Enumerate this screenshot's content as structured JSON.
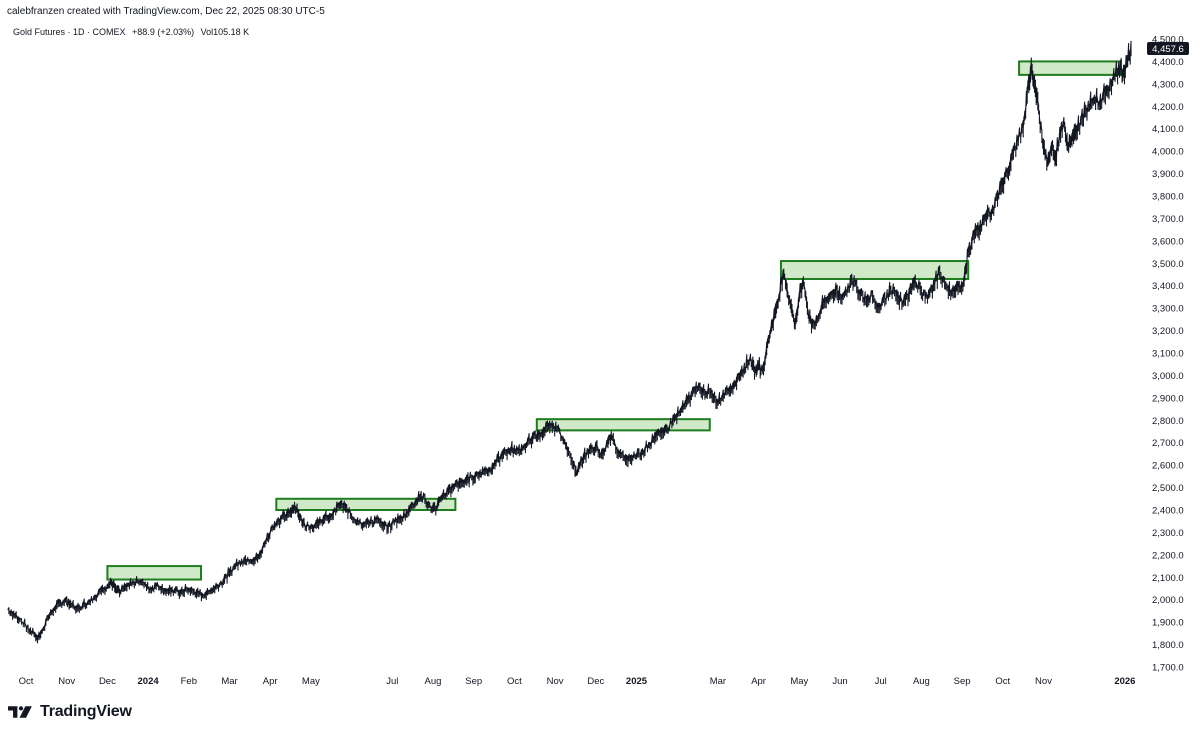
{
  "header": {
    "caption": "calebfranzen created with TradingView.com, Dec 22, 2025 08:30 UTC-5"
  },
  "symbol": {
    "name": "Gold Futures · 1D · COMEX",
    "change": "+88.9 (+2.03%)",
    "volume": "Vol105.18 K"
  },
  "footer": {
    "brand": "TradingView"
  },
  "colors": {
    "line": "#131722",
    "zone_fill": "#cfe9c9",
    "zone_stroke": "#1e7d1e",
    "last_price_bg": "#131722"
  },
  "chart_data": {
    "type": "line",
    "title": "Gold Futures · 1D · COMEX",
    "ylim": [
      1700,
      4500
    ],
    "yticks": [
      "4,500.0",
      "4,400.0",
      "4,300.0",
      "4,200.0",
      "4,100.0",
      "4,000.0",
      "3,900.0",
      "3,800.0",
      "3,700.0",
      "3,600.0",
      "3,500.0",
      "3,400.0",
      "3,300.0",
      "3,200.0",
      "3,100.0",
      "3,000.0",
      "2,900.0",
      "2,800.0",
      "2,700.0",
      "2,600.0",
      "2,500.0",
      "2,400.0",
      "2,300.0",
      "2,200.0",
      "2,100.0",
      "2,000.0",
      "1,900.0",
      "1,800.0",
      "1,700.0"
    ],
    "xticks": [
      {
        "label": "Oct",
        "t": 0.0,
        "bold": false
      },
      {
        "label": "Nov",
        "t": 1.0,
        "bold": false
      },
      {
        "label": "Dec",
        "t": 2.0,
        "bold": false
      },
      {
        "label": "2024",
        "t": 3.0,
        "bold": true
      },
      {
        "label": "Feb",
        "t": 4.0,
        "bold": false
      },
      {
        "label": "Mar",
        "t": 5.0,
        "bold": false
      },
      {
        "label": "Apr",
        "t": 6.0,
        "bold": false
      },
      {
        "label": "May",
        "t": 7.0,
        "bold": false
      },
      {
        "label": "Jul",
        "t": 9.0,
        "bold": false
      },
      {
        "label": "Aug",
        "t": 10.0,
        "bold": false
      },
      {
        "label": "Sep",
        "t": 11.0,
        "bold": false
      },
      {
        "label": "Oct",
        "t": 12.0,
        "bold": false
      },
      {
        "label": "Nov",
        "t": 13.0,
        "bold": false
      },
      {
        "label": "Dec",
        "t": 14.0,
        "bold": false
      },
      {
        "label": "2025",
        "t": 15.0,
        "bold": true
      },
      {
        "label": "Mar",
        "t": 17.0,
        "bold": false
      },
      {
        "label": "Apr",
        "t": 18.0,
        "bold": false
      },
      {
        "label": "May",
        "t": 19.0,
        "bold": false
      },
      {
        "label": "Jun",
        "t": 20.0,
        "bold": false
      },
      {
        "label": "Jul",
        "t": 21.0,
        "bold": false
      },
      {
        "label": "Aug",
        "t": 22.0,
        "bold": false
      },
      {
        "label": "Sep",
        "t": 23.0,
        "bold": false
      },
      {
        "label": "Oct",
        "t": 24.0,
        "bold": false
      },
      {
        "label": "Nov",
        "t": 25.0,
        "bold": false
      },
      {
        "label": "2026",
        "t": 27.0,
        "bold": true
      }
    ],
    "series": [
      {
        "name": "Gold Futures",
        "points": [
          [
            -0.45,
            1955
          ],
          [
            -0.3,
            1935
          ],
          [
            -0.15,
            1910
          ],
          [
            0.05,
            1870
          ],
          [
            0.2,
            1845
          ],
          [
            0.3,
            1830
          ],
          [
            0.4,
            1860
          ],
          [
            0.55,
            1920
          ],
          [
            0.7,
            1960
          ],
          [
            0.85,
            1985
          ],
          [
            1.0,
            1995
          ],
          [
            1.1,
            1980
          ],
          [
            1.25,
            1960
          ],
          [
            1.4,
            1975
          ],
          [
            1.55,
            1990
          ],
          [
            1.7,
            2010
          ],
          [
            1.85,
            2040
          ],
          [
            2.0,
            2060
          ],
          [
            2.1,
            2075
          ],
          [
            2.2,
            2050
          ],
          [
            2.3,
            2030
          ],
          [
            2.45,
            2055
          ],
          [
            2.6,
            2070
          ],
          [
            2.75,
            2080
          ],
          [
            2.9,
            2065
          ],
          [
            3.05,
            2045
          ],
          [
            3.2,
            2060
          ],
          [
            3.35,
            2050
          ],
          [
            3.5,
            2035
          ],
          [
            3.65,
            2040
          ],
          [
            3.8,
            2030
          ],
          [
            3.95,
            2045
          ],
          [
            4.1,
            2035
          ],
          [
            4.25,
            2025
          ],
          [
            4.4,
            2020
          ],
          [
            4.55,
            2040
          ],
          [
            4.7,
            2060
          ],
          [
            4.85,
            2080
          ],
          [
            5.0,
            2120
          ],
          [
            5.15,
            2150
          ],
          [
            5.3,
            2170
          ],
          [
            5.45,
            2180
          ],
          [
            5.6,
            2170
          ],
          [
            5.75,
            2200
          ],
          [
            5.9,
            2260
          ],
          [
            6.05,
            2320
          ],
          [
            6.2,
            2350
          ],
          [
            6.35,
            2370
          ],
          [
            6.5,
            2390
          ],
          [
            6.6,
            2420
          ],
          [
            6.7,
            2380
          ],
          [
            6.8,
            2340
          ],
          [
            6.95,
            2320
          ],
          [
            7.1,
            2330
          ],
          [
            7.25,
            2350
          ],
          [
            7.4,
            2365
          ],
          [
            7.55,
            2380
          ],
          [
            7.7,
            2420
          ],
          [
            7.85,
            2410
          ],
          [
            8.0,
            2370
          ],
          [
            8.15,
            2350
          ],
          [
            8.3,
            2335
          ],
          [
            8.45,
            2340
          ],
          [
            8.6,
            2355
          ],
          [
            8.75,
            2330
          ],
          [
            8.9,
            2320
          ],
          [
            9.05,
            2345
          ],
          [
            9.2,
            2360
          ],
          [
            9.35,
            2385
          ],
          [
            9.5,
            2420
          ],
          [
            9.65,
            2460
          ],
          [
            9.8,
            2450
          ],
          [
            9.95,
            2400
          ],
          [
            10.1,
            2410
          ],
          [
            10.2,
            2450
          ],
          [
            10.35,
            2480
          ],
          [
            10.5,
            2500
          ],
          [
            10.65,
            2520
          ],
          [
            10.8,
            2530
          ],
          [
            10.95,
            2545
          ],
          [
            11.1,
            2555
          ],
          [
            11.25,
            2570
          ],
          [
            11.4,
            2580
          ],
          [
            11.55,
            2610
          ],
          [
            11.7,
            2640
          ],
          [
            11.85,
            2665
          ],
          [
            12.0,
            2670
          ],
          [
            12.15,
            2660
          ],
          [
            12.3,
            2690
          ],
          [
            12.45,
            2720
          ],
          [
            12.6,
            2735
          ],
          [
            12.75,
            2750
          ],
          [
            12.9,
            2775
          ],
          [
            13.05,
            2760
          ],
          [
            13.2,
            2710
          ],
          [
            13.3,
            2660
          ],
          [
            13.45,
            2600
          ],
          [
            13.55,
            2570
          ],
          [
            13.7,
            2630
          ],
          [
            13.85,
            2670
          ],
          [
            14.0,
            2680
          ],
          [
            14.15,
            2650
          ],
          [
            14.3,
            2700
          ],
          [
            14.4,
            2720
          ],
          [
            14.55,
            2650
          ],
          [
            14.7,
            2630
          ],
          [
            14.85,
            2625
          ],
          [
            15.0,
            2640
          ],
          [
            15.15,
            2660
          ],
          [
            15.3,
            2690
          ],
          [
            15.45,
            2720
          ],
          [
            15.6,
            2740
          ],
          [
            15.75,
            2760
          ],
          [
            15.9,
            2800
          ],
          [
            16.05,
            2830
          ],
          [
            16.2,
            2870
          ],
          [
            16.35,
            2910
          ],
          [
            16.5,
            2940
          ],
          [
            16.65,
            2935
          ],
          [
            16.8,
            2920
          ],
          [
            16.95,
            2880
          ],
          [
            17.1,
            2900
          ],
          [
            17.25,
            2930
          ],
          [
            17.4,
            2960
          ],
          [
            17.5,
            2995
          ],
          [
            17.65,
            3030
          ],
          [
            17.8,
            3080
          ],
          [
            17.9,
            3010
          ],
          [
            18.0,
            3040
          ],
          [
            18.1,
            3020
          ],
          [
            18.2,
            3120
          ],
          [
            18.3,
            3200
          ],
          [
            18.4,
            3280
          ],
          [
            18.5,
            3350
          ],
          [
            18.6,
            3450
          ],
          [
            18.7,
            3380
          ],
          [
            18.8,
            3310
          ],
          [
            18.9,
            3230
          ],
          [
            19.0,
            3350
          ],
          [
            19.1,
            3420
          ],
          [
            19.2,
            3300
          ],
          [
            19.3,
            3220
          ],
          [
            19.45,
            3250
          ],
          [
            19.6,
            3320
          ],
          [
            19.75,
            3350
          ],
          [
            19.9,
            3380
          ],
          [
            20.05,
            3340
          ],
          [
            20.2,
            3390
          ],
          [
            20.35,
            3420
          ],
          [
            20.5,
            3360
          ],
          [
            20.65,
            3330
          ],
          [
            20.8,
            3350
          ],
          [
            20.95,
            3300
          ],
          [
            21.1,
            3340
          ],
          [
            21.25,
            3380
          ],
          [
            21.4,
            3350
          ],
          [
            21.55,
            3320
          ],
          [
            21.7,
            3360
          ],
          [
            21.85,
            3420
          ],
          [
            22.0,
            3370
          ],
          [
            22.15,
            3340
          ],
          [
            22.3,
            3400
          ],
          [
            22.45,
            3460
          ],
          [
            22.6,
            3400
          ],
          [
            22.75,
            3370
          ],
          [
            22.9,
            3390
          ],
          [
            23.05,
            3420
          ],
          [
            23.15,
            3550
          ],
          [
            23.3,
            3620
          ],
          [
            23.45,
            3660
          ],
          [
            23.6,
            3700
          ],
          [
            23.75,
            3740
          ],
          [
            23.9,
            3800
          ],
          [
            24.05,
            3880
          ],
          [
            24.2,
            3950
          ],
          [
            24.35,
            4040
          ],
          [
            24.5,
            4100
          ],
          [
            24.6,
            4250
          ],
          [
            24.7,
            4380
          ],
          [
            24.8,
            4280
          ],
          [
            24.9,
            4150
          ],
          [
            25.0,
            4020
          ],
          [
            25.1,
            3950
          ],
          [
            25.2,
            4010
          ],
          [
            25.3,
            3970
          ],
          [
            25.4,
            4080
          ],
          [
            25.5,
            4130
          ],
          [
            25.6,
            4020
          ],
          [
            25.7,
            4050
          ],
          [
            25.8,
            4080
          ],
          [
            25.95,
            4150
          ],
          [
            26.1,
            4200
          ],
          [
            26.25,
            4230
          ],
          [
            26.4,
            4220
          ],
          [
            26.55,
            4270
          ],
          [
            26.7,
            4310
          ],
          [
            26.85,
            4370
          ],
          [
            26.95,
            4340
          ],
          [
            27.05,
            4400
          ],
          [
            27.15,
            4457.6
          ]
        ]
      }
    ],
    "zones": [
      {
        "t0": 2.0,
        "t1": 4.3,
        "low": 2090,
        "high": 2150
      },
      {
        "t0": 6.15,
        "t1": 10.55,
        "low": 2400,
        "high": 2450
      },
      {
        "t0": 12.55,
        "t1": 16.8,
        "low": 2755,
        "high": 2805
      },
      {
        "t0": 18.55,
        "t1": 23.15,
        "low": 3430,
        "high": 3510
      },
      {
        "t0": 24.4,
        "t1": 26.9,
        "low": 4340,
        "high": 4400
      }
    ],
    "last_price": "4,457.6",
    "last_price_value": 4457.6
  }
}
